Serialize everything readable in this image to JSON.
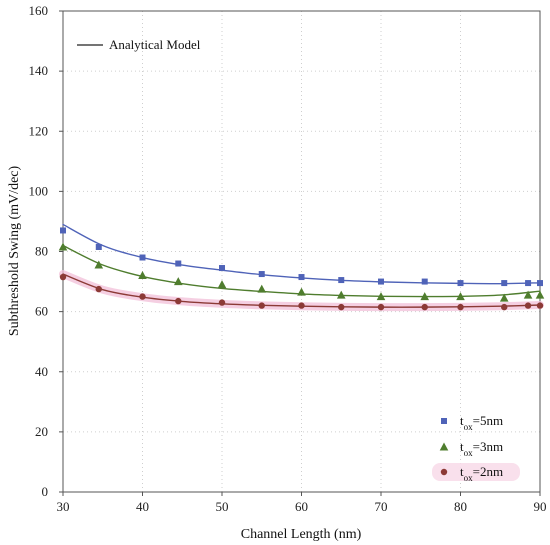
{
  "chart_data": {
    "type": "line",
    "title": "",
    "xlabel": "Channel Length (nm)",
    "ylabel": "Subthreshold Swing (mV/dec)",
    "xlim": [
      30,
      90
    ],
    "ylim": [
      0,
      160
    ],
    "xticks": [
      30,
      40,
      50,
      60,
      70,
      80,
      90
    ],
    "yticks": [
      0,
      20,
      40,
      60,
      80,
      100,
      120,
      140,
      160
    ],
    "grid": "dotted",
    "legend_top_left": {
      "label": "Analytical Model"
    },
    "series": [
      {
        "name": "tox=5nm",
        "legend_main": "t",
        "legend_sub": "ox",
        "legend_tail": "=5nm",
        "color": "#4f63b8",
        "marker": "square",
        "points": [
          {
            "x": 30,
            "y": 87
          },
          {
            "x": 34.5,
            "y": 81.5
          },
          {
            "x": 40,
            "y": 78
          },
          {
            "x": 44.5,
            "y": 76
          },
          {
            "x": 50,
            "y": 74.5
          },
          {
            "x": 55,
            "y": 72.5
          },
          {
            "x": 60,
            "y": 71.5
          },
          {
            "x": 65,
            "y": 70.5
          },
          {
            "x": 70,
            "y": 70
          },
          {
            "x": 75.5,
            "y": 70
          },
          {
            "x": 80,
            "y": 69.5
          },
          {
            "x": 85.5,
            "y": 69.5
          },
          {
            "x": 88.5,
            "y": 69.5
          },
          {
            "x": 90,
            "y": 69.5
          }
        ],
        "curve": [
          {
            "x": 30,
            "y": 89
          },
          {
            "x": 35,
            "y": 82
          },
          {
            "x": 40,
            "y": 78
          },
          {
            "x": 45,
            "y": 75.5
          },
          {
            "x": 50,
            "y": 73.8
          },
          {
            "x": 55,
            "y": 72.3
          },
          {
            "x": 60,
            "y": 71.2
          },
          {
            "x": 65,
            "y": 70.4
          },
          {
            "x": 70,
            "y": 69.9
          },
          {
            "x": 75,
            "y": 69.6
          },
          {
            "x": 80,
            "y": 69.4
          },
          {
            "x": 85,
            "y": 69.3
          },
          {
            "x": 90,
            "y": 69.6
          }
        ]
      },
      {
        "name": "tox=3nm",
        "legend_main": "t",
        "legend_sub": "ox",
        "legend_tail": "=3nm",
        "color": "#4f7d2e",
        "marker": "triangle",
        "points": [
          {
            "x": 30,
            "y": 81.5
          },
          {
            "x": 34.5,
            "y": 75.5
          },
          {
            "x": 40,
            "y": 72
          },
          {
            "x": 44.5,
            "y": 70
          },
          {
            "x": 50,
            "y": 69
          },
          {
            "x": 55,
            "y": 67.5
          },
          {
            "x": 60,
            "y": 66.5
          },
          {
            "x": 65,
            "y": 65.5
          },
          {
            "x": 70,
            "y": 65
          },
          {
            "x": 75.5,
            "y": 65
          },
          {
            "x": 80,
            "y": 65
          },
          {
            "x": 85.5,
            "y": 64.5
          },
          {
            "x": 88.5,
            "y": 65.5
          },
          {
            "x": 90,
            "y": 65.5
          }
        ],
        "curve": [
          {
            "x": 30,
            "y": 82
          },
          {
            "x": 35,
            "y": 75.5
          },
          {
            "x": 40,
            "y": 71.7
          },
          {
            "x": 45,
            "y": 69.3
          },
          {
            "x": 50,
            "y": 67.7
          },
          {
            "x": 55,
            "y": 66.7
          },
          {
            "x": 60,
            "y": 65.9
          },
          {
            "x": 65,
            "y": 65.4
          },
          {
            "x": 70,
            "y": 65.1
          },
          {
            "x": 75,
            "y": 65
          },
          {
            "x": 80,
            "y": 65.1
          },
          {
            "x": 85,
            "y": 65.5
          },
          {
            "x": 90,
            "y": 66.8
          }
        ]
      },
      {
        "name": "tox=2nm",
        "legend_main": "t",
        "legend_sub": "ox",
        "legend_tail": "=2nm",
        "color": "#8c3a36",
        "marker": "circle",
        "points": [
          {
            "x": 30,
            "y": 71.5
          },
          {
            "x": 34.5,
            "y": 67.5
          },
          {
            "x": 40,
            "y": 65
          },
          {
            "x": 44.5,
            "y": 63.5
          },
          {
            "x": 50,
            "y": 63
          },
          {
            "x": 55,
            "y": 62
          },
          {
            "x": 60,
            "y": 62
          },
          {
            "x": 65,
            "y": 61.5
          },
          {
            "x": 70,
            "y": 61.5
          },
          {
            "x": 75.5,
            "y": 61.5
          },
          {
            "x": 80,
            "y": 61.5
          },
          {
            "x": 85.5,
            "y": 61.5
          },
          {
            "x": 88.5,
            "y": 62
          },
          {
            "x": 90,
            "y": 62
          }
        ],
        "curve": [
          {
            "x": 30,
            "y": 72.5
          },
          {
            "x": 35,
            "y": 67.3
          },
          {
            "x": 40,
            "y": 64.8
          },
          {
            "x": 45,
            "y": 63.4
          },
          {
            "x": 50,
            "y": 62.6
          },
          {
            "x": 55,
            "y": 62.1
          },
          {
            "x": 60,
            "y": 61.8
          },
          {
            "x": 65,
            "y": 61.6
          },
          {
            "x": 70,
            "y": 61.5
          },
          {
            "x": 75,
            "y": 61.5
          },
          {
            "x": 80,
            "y": 61.6
          },
          {
            "x": 85,
            "y": 61.8
          },
          {
            "x": 90,
            "y": 62.2
          }
        ]
      }
    ]
  }
}
